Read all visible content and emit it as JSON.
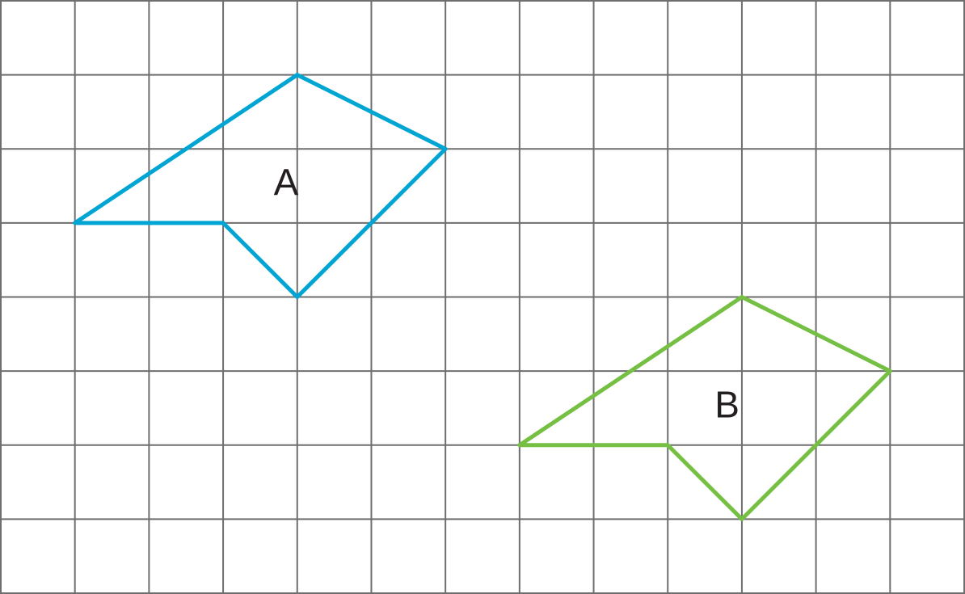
{
  "grid": {
    "columns": 13,
    "rows": 8,
    "line_color": "#6e6e6e"
  },
  "shapes": [
    {
      "label": "A",
      "color": "#00a5d3",
      "vertices": [
        [
          1,
          3
        ],
        [
          4,
          1
        ],
        [
          6,
          2
        ],
        [
          4,
          4
        ],
        [
          3,
          3
        ]
      ],
      "label_pos": [
        3.85,
        2.45
      ]
    },
    {
      "label": "B",
      "color": "#75c043",
      "vertices": [
        [
          7,
          6
        ],
        [
          10,
          4
        ],
        [
          12,
          5
        ],
        [
          10,
          7
        ],
        [
          9,
          6
        ]
      ],
      "label_pos": [
        9.8,
        5.45
      ]
    }
  ]
}
